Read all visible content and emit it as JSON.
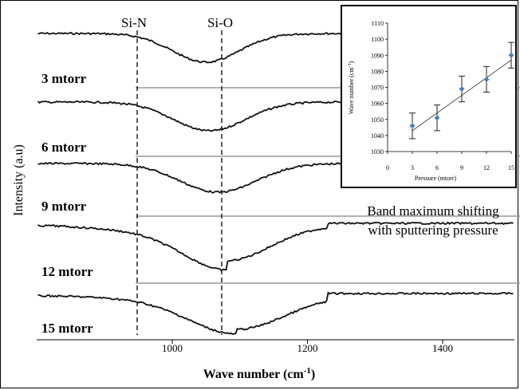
{
  "chart_data": [
    {
      "type": "line",
      "xlabel": "Wave number (cm",
      "xlabel_sup": "-1",
      "xlabel_suffix": ")",
      "ylabel": "Intensity (a.u)",
      "xlim": [
        800,
        1500
      ],
      "x_ticks": [
        1000,
        1200,
        1400
      ],
      "x_tick_labels": [
        "1000",
        "1200",
        "1400"
      ],
      "markers": [
        {
          "label": "Si-N",
          "x": 945
        },
        {
          "label": "Si-O",
          "x": 1070
        }
      ],
      "series": [
        {
          "name": "3 mtorr",
          "min_x": 1050
        },
        {
          "name": "6 mtorr",
          "min_x": 1055
        },
        {
          "name": "9 mtorr",
          "min_x": 1068
        },
        {
          "name": "12 mtorr",
          "min_x": 1080
        },
        {
          "name": "15 mtorr",
          "min_x": 1095
        }
      ],
      "annotation": [
        "Band maximum shifting",
        "with sputtering pressure"
      ]
    },
    {
      "type": "scatter",
      "xlabel": "Pressure (mtorr)",
      "ylabel": "Wave number (cm",
      "ylabel_sup": "-1",
      "ylabel_suffix": ")",
      "xlim": [
        0,
        15
      ],
      "ylim": [
        1030,
        1110
      ],
      "x_ticks": [
        0,
        3,
        6,
        9,
        12,
        15
      ],
      "y_ticks": [
        1030,
        1040,
        1050,
        1060,
        1070,
        1080,
        1090,
        1100,
        1110
      ],
      "x": [
        3,
        6,
        9,
        12,
        15
      ],
      "y": [
        1046,
        1051,
        1069,
        1075,
        1090
      ],
      "error": [
        8,
        8,
        8,
        8,
        8
      ],
      "trendline": {
        "x": [
          3,
          15
        ],
        "y": [
          1043,
          1087
        ]
      },
      "point_color": "#4a7ebb",
      "line_color": "#555555"
    }
  ]
}
